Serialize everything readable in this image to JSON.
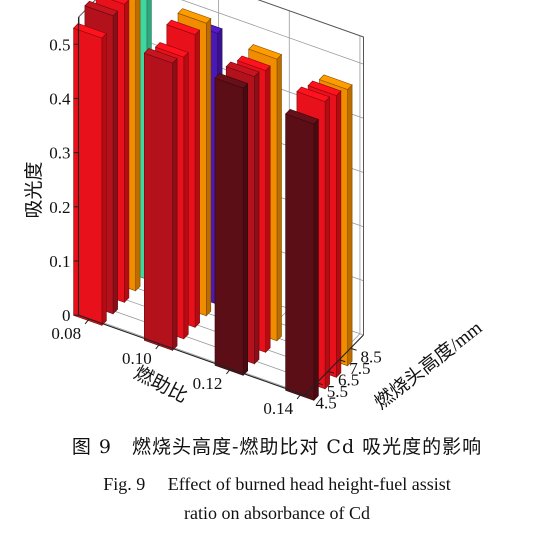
{
  "chart_data": {
    "type": "bar3d",
    "title": "",
    "zlabel": "吸光度",
    "xlabel": "燃助比",
    "ylabel": "燃烧头高度/mm",
    "x_ticks": [
      "0.08",
      "0.10",
      "0.12",
      "0.14"
    ],
    "y_ticks": [
      "4.5",
      "5.5",
      "6.5",
      "7.5",
      "8.5"
    ],
    "z_ticks": [
      "0",
      "0.1",
      "0.2",
      "0.3",
      "0.4",
      "0.5"
    ],
    "zlim": [
      0,
      0.55
    ],
    "grid": true,
    "colors": {
      "red": "#e8101a",
      "crimson": "#b3121c",
      "dark": "#5c0e16",
      "orange": "#f08c00",
      "green": "#3fd6a0",
      "purple": "#4a18b4"
    },
    "bars": [
      {
        "x": "0.08",
        "y": "4.5",
        "value": 0.53,
        "color": "red"
      },
      {
        "x": "0.08",
        "y": "5.5",
        "value": 0.55,
        "color": "crimson"
      },
      {
        "x": "0.08",
        "y": "6.5",
        "value": 0.55,
        "color": "red"
      },
      {
        "x": "0.08",
        "y": "7.5",
        "value": 0.55,
        "color": "orange"
      },
      {
        "x": "0.08",
        "y": "8.5",
        "value": 0.54,
        "color": "green"
      },
      {
        "x": "0.10",
        "y": "4.5",
        "value": 0.53,
        "color": "crimson"
      },
      {
        "x": "0.10",
        "y": "5.5",
        "value": 0.52,
        "color": "red"
      },
      {
        "x": "0.10",
        "y": "6.5",
        "value": 0.54,
        "color": "red"
      },
      {
        "x": "0.10",
        "y": "7.5",
        "value": 0.54,
        "color": "orange"
      },
      {
        "x": "0.10",
        "y": "8.5",
        "value": 0.5,
        "color": "purple"
      },
      {
        "x": "0.12",
        "y": "4.5",
        "value": 0.53,
        "color": "dark"
      },
      {
        "x": "0.12",
        "y": "5.5",
        "value": 0.53,
        "color": "crimson"
      },
      {
        "x": "0.12",
        "y": "6.5",
        "value": 0.52,
        "color": "red"
      },
      {
        "x": "0.12",
        "y": "7.5",
        "value": 0.52,
        "color": "orange"
      },
      {
        "x": "0.14",
        "y": "4.5",
        "value": 0.51,
        "color": "dark"
      },
      {
        "x": "0.14",
        "y": "5.5",
        "value": 0.53,
        "color": "red"
      },
      {
        "x": "0.14",
        "y": "6.5",
        "value": 0.52,
        "color": "red"
      },
      {
        "x": "0.14",
        "y": "7.5",
        "value": 0.51,
        "color": "orange"
      }
    ]
  },
  "caption": {
    "cn": "图 9　燃烧头高度-燃助比对 Cd 吸光度的影响",
    "en_line1": "Fig. 9　 Effect of burned head height-fuel assist",
    "en_line2": "ratio on absorbance of Cd"
  }
}
